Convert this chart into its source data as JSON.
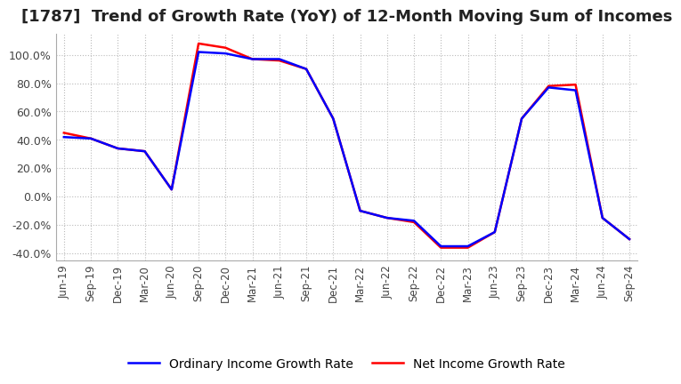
{
  "title": "[1787]  Trend of Growth Rate (YoY) of 12-Month Moving Sum of Incomes",
  "title_fontsize": 13,
  "ylim": [
    -45,
    115
  ],
  "yticks": [
    -40,
    -20,
    0,
    20,
    40,
    60,
    80,
    100
  ],
  "ytick_labels": [
    "-40.0%",
    "-20.0%",
    "0.0%",
    "20.0%",
    "40.0%",
    "60.0%",
    "80.0%",
    "100.0%"
  ],
  "legend_labels": [
    "Ordinary Income Growth Rate",
    "Net Income Growth Rate"
  ],
  "legend_colors": [
    "blue",
    "red"
  ],
  "x_labels": [
    "Jun-19",
    "Sep-19",
    "Dec-19",
    "Mar-20",
    "Jun-20",
    "Sep-20",
    "Dec-20",
    "Mar-21",
    "Jun-21",
    "Sep-21",
    "Dec-21",
    "Mar-22",
    "Jun-22",
    "Sep-22",
    "Dec-22",
    "Mar-23",
    "Jun-23",
    "Sep-23",
    "Dec-23",
    "Mar-24",
    "Jun-24",
    "Sep-24"
  ],
  "ordinary_income": [
    42,
    41,
    34,
    32,
    5,
    102,
    101,
    97,
    97,
    90,
    55,
    -10,
    -15,
    -17,
    -35,
    -35,
    -25,
    55,
    77,
    75,
    -15,
    -30
  ],
  "net_income": [
    45,
    41,
    34,
    32,
    5,
    108,
    105,
    97,
    96,
    90,
    55,
    -10,
    -15,
    -18,
    -36,
    -36,
    -25,
    55,
    78,
    79,
    -15,
    -30
  ],
  "line_width": 1.8,
  "background_color": "#ffffff",
  "grid_color": "#bbbbbb",
  "plot_bg_color": "#ffffff",
  "title_color": "#222222"
}
